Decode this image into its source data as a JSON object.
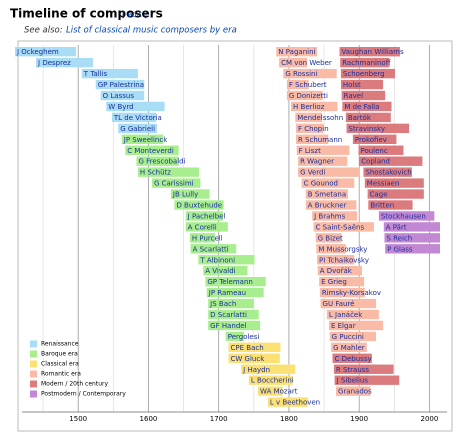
{
  "chart_data": {
    "type": "timeline",
    "title": "Timeline of composers",
    "edit_link": "[ edit ]",
    "subtitle_prefix": "See also:",
    "subtitle_link": "List of classical music composers by era",
    "xlim": [
      1420,
      2025
    ],
    "xticks": [
      1500,
      1600,
      1700,
      1800,
      1900,
      2000
    ],
    "minor_xticks": [
      1450,
      1550,
      1650,
      1750,
      1850,
      1950
    ],
    "grid": true,
    "legend": "lower left",
    "eras": [
      {
        "name": "Renaissance",
        "color": "#a9dcf5"
      },
      {
        "name": "Baroque era",
        "color": "#a8ee8e"
      },
      {
        "name": "Classical era",
        "color": "#fbe174"
      },
      {
        "name": "Romantic era",
        "color": "#f9bba6"
      },
      {
        "name": "Modern / 20th century",
        "color": "#dc7b7e"
      },
      {
        "name": "Postmodern / Contemporary",
        "color": "#c388d4"
      }
    ],
    "columns": [
      [
        {
          "name": "J Ockeghem",
          "start": 1410,
          "end": 1497,
          "era": 0
        },
        {
          "name": "J Desprez",
          "start": 1440,
          "end": 1521,
          "era": 0
        },
        {
          "name": "T Tallis",
          "start": 1505,
          "end": 1585,
          "era": 0
        },
        {
          "name": "GP Palestrina",
          "start": 1525,
          "end": 1594,
          "era": 0
        },
        {
          "name": "O Lassus",
          "start": 1532,
          "end": 1594,
          "era": 0
        },
        {
          "name": "W Byrd",
          "start": 1540,
          "end": 1623,
          "era": 0
        },
        {
          "name": "TL de Victoria",
          "start": 1548,
          "end": 1611,
          "era": 0
        },
        {
          "name": "G Gabrieli",
          "start": 1557,
          "end": 1612,
          "era": 0
        },
        {
          "name": "JP Sweelinck",
          "start": 1562,
          "end": 1621,
          "era": 1
        },
        {
          "name": "C Monteverdi",
          "start": 1567,
          "end": 1643,
          "era": 1
        },
        {
          "name": "G Frescobaldi",
          "start": 1583,
          "end": 1643,
          "era": 1
        },
        {
          "name": "H Schütz",
          "start": 1585,
          "end": 1672,
          "era": 1
        },
        {
          "name": "G Carissimi",
          "start": 1605,
          "end": 1674,
          "era": 1
        },
        {
          "name": "JB Lully",
          "start": 1632,
          "end": 1687,
          "era": 1
        },
        {
          "name": "D Buxtehude",
          "start": 1637,
          "end": 1707,
          "era": 1
        },
        {
          "name": "J Pachelbel",
          "start": 1653,
          "end": 1706,
          "era": 1
        },
        {
          "name": "A Corelli",
          "start": 1653,
          "end": 1713,
          "era": 1
        },
        {
          "name": "H Purcell",
          "start": 1659,
          "end": 1695,
          "era": 1
        },
        {
          "name": "A Scarlatti",
          "start": 1660,
          "end": 1725,
          "era": 1
        },
        {
          "name": "T Albinoni",
          "start": 1671,
          "end": 1751,
          "era": 1
        },
        {
          "name": "A Vivaldi",
          "start": 1678,
          "end": 1741,
          "era": 1
        },
        {
          "name": "GP Telemann",
          "start": 1681,
          "end": 1767,
          "era": 1
        },
        {
          "name": "JP Rameau",
          "start": 1683,
          "end": 1764,
          "era": 1
        },
        {
          "name": "JS Bach",
          "start": 1685,
          "end": 1750,
          "era": 1
        },
        {
          "name": "D Scarlatti",
          "start": 1685,
          "end": 1757,
          "era": 1
        },
        {
          "name": "GF Handel",
          "start": 1685,
          "end": 1759,
          "era": 1
        },
        {
          "name": "Pergolesi",
          "start": 1710,
          "end": 1736,
          "era": 1
        },
        {
          "name": "CPE Bach",
          "start": 1714,
          "end": 1788,
          "era": 2
        },
        {
          "name": "CW Gluck",
          "start": 1714,
          "end": 1787,
          "era": 2
        },
        {
          "name": "J Haydn",
          "start": 1732,
          "end": 1809,
          "era": 2
        },
        {
          "name": "L Boccherini",
          "start": 1743,
          "end": 1805,
          "era": 2
        },
        {
          "name": "WA Mozart",
          "start": 1756,
          "end": 1791,
          "era": 2
        },
        {
          "name": "L v Beethoven",
          "start": 1770,
          "end": 1827,
          "era": 2
        }
      ],
      [
        {
          "name": "N Paganini",
          "start": 1782,
          "end": 1840,
          "era": 3
        },
        {
          "name": "CM von Weber",
          "start": 1786,
          "end": 1826,
          "era": 3
        },
        {
          "name": "G Rossini",
          "start": 1792,
          "end": 1868,
          "era": 3
        },
        {
          "name": "F Schubert",
          "start": 1797,
          "end": 1828,
          "era": 3
        },
        {
          "name": "G Donizetti",
          "start": 1797,
          "end": 1848,
          "era": 3
        },
        {
          "name": "H Berlioz",
          "start": 1803,
          "end": 1869,
          "era": 3
        },
        {
          "name": "Mendelssohn",
          "start": 1809,
          "end": 1847,
          "era": 3
        },
        {
          "name": "F Chopin",
          "start": 1810,
          "end": 1849,
          "era": 3
        },
        {
          "name": "R Schumann",
          "start": 1810,
          "end": 1856,
          "era": 3
        },
        {
          "name": "F Liszt",
          "start": 1811,
          "end": 1886,
          "era": 3
        },
        {
          "name": "R Wagner",
          "start": 1813,
          "end": 1883,
          "era": 3
        },
        {
          "name": "G Verdi",
          "start": 1813,
          "end": 1901,
          "era": 3
        },
        {
          "name": "C Gounod",
          "start": 1818,
          "end": 1893,
          "era": 3
        },
        {
          "name": "B Smetana",
          "start": 1824,
          "end": 1884,
          "era": 3
        },
        {
          "name": "A Bruckner",
          "start": 1824,
          "end": 1896,
          "era": 3
        },
        {
          "name": "J Brahms",
          "start": 1833,
          "end": 1897,
          "era": 3
        },
        {
          "name": "C Saint-Saëns",
          "start": 1835,
          "end": 1921,
          "era": 3
        },
        {
          "name": "G Bizet",
          "start": 1838,
          "end": 1875,
          "era": 3
        },
        {
          "name": "M Mussorgsky",
          "start": 1839,
          "end": 1881,
          "era": 3
        },
        {
          "name": "PI Tchaikovsky",
          "start": 1840,
          "end": 1893,
          "era": 3
        },
        {
          "name": "A Dvořák",
          "start": 1841,
          "end": 1904,
          "era": 3
        },
        {
          "name": "E Grieg",
          "start": 1843,
          "end": 1907,
          "era": 3
        },
        {
          "name": "Rimsky-Korsakov",
          "start": 1844,
          "end": 1908,
          "era": 3
        },
        {
          "name": "GU Fauré",
          "start": 1845,
          "end": 1924,
          "era": 3
        },
        {
          "name": "L Janáček",
          "start": 1854,
          "end": 1928,
          "era": 3
        },
        {
          "name": "E Elgar",
          "start": 1857,
          "end": 1934,
          "era": 3
        },
        {
          "name": "G Puccini",
          "start": 1858,
          "end": 1924,
          "era": 3
        },
        {
          "name": "G Mahler",
          "start": 1860,
          "end": 1911,
          "era": 3
        },
        {
          "name": "C Debussy",
          "start": 1862,
          "end": 1918,
          "era": 4
        },
        {
          "name": "R Strauss",
          "start": 1864,
          "end": 1949,
          "era": 4
        },
        {
          "name": "J Sibelius",
          "start": 1865,
          "end": 1957,
          "era": 4
        },
        {
          "name": "Granados",
          "start": 1867,
          "end": 1916,
          "era": 3
        }
      ],
      [
        {
          "name": "Vaughan Williams",
          "start": 1872,
          "end": 1958,
          "era": 4
        },
        {
          "name": "Rachmaninoff",
          "start": 1873,
          "end": 1943,
          "era": 4
        },
        {
          "name": "Schoenberg",
          "start": 1874,
          "end": 1951,
          "era": 4
        },
        {
          "name": "Holst",
          "start": 1874,
          "end": 1934,
          "era": 4
        },
        {
          "name": "Ravel",
          "start": 1875,
          "end": 1937,
          "era": 4
        },
        {
          "name": "M de Falla",
          "start": 1876,
          "end": 1946,
          "era": 4
        },
        {
          "name": "Bartók",
          "start": 1881,
          "end": 1945,
          "era": 4
        },
        {
          "name": "Stravinsky",
          "start": 1882,
          "end": 1971,
          "era": 4
        },
        {
          "name": "Prokofiev",
          "start": 1891,
          "end": 1953,
          "era": 4
        },
        {
          "name": "Poulenc",
          "start": 1899,
          "end": 1963,
          "era": 4
        },
        {
          "name": "Copland",
          "start": 1900,
          "end": 1990,
          "era": 4
        },
        {
          "name": "Shostakovich",
          "start": 1906,
          "end": 1975,
          "era": 4
        },
        {
          "name": "Messiaen",
          "start": 1908,
          "end": 1992,
          "era": 4
        },
        {
          "name": "Cage",
          "start": 1912,
          "end": 1992,
          "era": 4
        },
        {
          "name": "Britten",
          "start": 1913,
          "end": 1976,
          "era": 4
        },
        {
          "name": "Stockhausen",
          "start": 1928,
          "end": 2007,
          "era": 5
        },
        {
          "name": "A Pärt",
          "start": 1935,
          "end": 2015,
          "era": 5
        },
        {
          "name": "S Reich",
          "start": 1936,
          "end": 2015,
          "era": 5
        },
        {
          "name": "P Glass",
          "start": 1937,
          "end": 2015,
          "era": 5
        }
      ]
    ]
  }
}
